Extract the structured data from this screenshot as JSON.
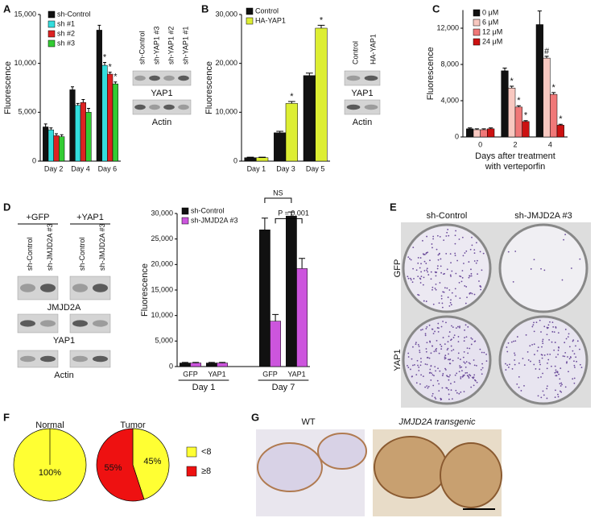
{
  "panels": [
    "A",
    "B",
    "C",
    "D",
    "E",
    "F",
    "G"
  ],
  "chart_data": [
    {
      "type": "bar",
      "ylabel": "Fluorescence",
      "categories": [
        "Day 2",
        "Day 4",
        "Day 6"
      ],
      "ylim": [
        0,
        15000
      ],
      "yticks": [
        0,
        {
          "value": 5000,
          "label": "5,000"
        },
        {
          "value": 10000,
          "label": "10,000"
        },
        {
          "value": 15000,
          "label": "15,000"
        }
      ],
      "series": [
        {
          "name": "sh-Control",
          "color": "#111111",
          "values": [
            3500,
            7300,
            13400
          ],
          "errors": [
            300,
            300,
            500
          ],
          "labels": [
            null,
            null,
            null
          ]
        },
        {
          "name": "sh #1",
          "color": "#33dddd",
          "values": [
            3200,
            5700,
            9800
          ],
          "errors": [
            200,
            200,
            300
          ],
          "labels": [
            null,
            null,
            "*"
          ]
        },
        {
          "name": "sh #2",
          "color": "#dd2222",
          "values": [
            2600,
            6000,
            8900
          ],
          "errors": [
            200,
            300,
            200
          ],
          "labels": [
            null,
            null,
            "*"
          ]
        },
        {
          "name": "sh #3",
          "color": "#33cc33",
          "values": [
            2500,
            5000,
            7900
          ],
          "errors": [
            200,
            400,
            200
          ],
          "labels": [
            null,
            null,
            "*"
          ]
        }
      ]
    },
    {
      "type": "bar",
      "ylabel": "Fluorescence",
      "categories": [
        "Day 1",
        "Day 3",
        "Day 5"
      ],
      "ylim": [
        0,
        30000
      ],
      "yticks": [
        0,
        {
          "value": 10000,
          "label": "10,000"
        },
        {
          "value": 20000,
          "label": "20,000"
        },
        {
          "value": 30000,
          "label": "30,000"
        }
      ],
      "series": [
        {
          "name": "Control",
          "color": "#111111",
          "values": [
            700,
            5800,
            17500
          ],
          "errors": [
            100,
            300,
            500
          ],
          "labels": [
            null,
            null,
            null
          ]
        },
        {
          "name": "HA-YAP1",
          "color": "#ddee33",
          "values": [
            700,
            11800,
            27200
          ],
          "errors": [
            100,
            400,
            600
          ],
          "labels": [
            null,
            "*",
            "*"
          ]
        }
      ]
    },
    {
      "type": "bar",
      "ylabel": "Fluorescence",
      "xlabel": [
        "Days after treatment",
        "with verteporfin"
      ],
      "categories": [
        "0",
        "2",
        "4"
      ],
      "ylim": [
        0,
        14000
      ],
      "yticks": [
        0,
        {
          "value": 4000,
          "label": "4,000"
        },
        {
          "value": 8000,
          "label": "8,000"
        },
        {
          "value": 12000,
          "label": "12,000"
        }
      ],
      "series": [
        {
          "name": "0 μM",
          "color": "#111111",
          "values": [
            900,
            7300,
            12400
          ],
          "errors": [
            100,
            300,
            1500
          ],
          "labels": [
            null,
            null,
            null
          ]
        },
        {
          "name": "6 μM",
          "color": "#f8c8c0",
          "values": [
            800,
            5400,
            8700
          ],
          "errors": [
            100,
            200,
            200
          ],
          "labels": [
            null,
            "*",
            "#"
          ]
        },
        {
          "name": "12 μM",
          "color": "#f07878",
          "values": [
            800,
            3300,
            4700
          ],
          "errors": [
            100,
            150,
            200
          ],
          "labels": [
            null,
            "*",
            "*"
          ]
        },
        {
          "name": "24 μM",
          "color": "#cc1111",
          "values": [
            900,
            1700,
            1300
          ],
          "errors": [
            100,
            100,
            100
          ],
          "labels": [
            null,
            "*",
            "*"
          ]
        }
      ]
    },
    {
      "type": "bar",
      "ylabel": "Fluorescence",
      "categories": [
        "GFP",
        "YAP1",
        "GFP",
        "YAP1"
      ],
      "groups": [
        "Day 1",
        "Day 7"
      ],
      "ylim": [
        0,
        30000
      ],
      "yticks": [
        0,
        {
          "value": 5000,
          "label": "5,000"
        },
        {
          "value": 10000,
          "label": "10,000"
        },
        {
          "value": 15000,
          "label": "15,000"
        },
        {
          "value": 20000,
          "label": "20,000"
        },
        {
          "value": 25000,
          "label": "25,000"
        },
        {
          "value": 30000,
          "label": "30,000"
        }
      ],
      "annotations": [
        "NS",
        "P = 0.001"
      ],
      "series": [
        {
          "name": "sh-Control",
          "color": "#111111",
          "values": [
            700,
            700,
            26800,
            29500
          ],
          "errors": [
            100,
            100,
            2300,
            800
          ],
          "labels": [
            null,
            null,
            null,
            null
          ]
        },
        {
          "name": "sh-JMJD2A #3",
          "color": "#cc55dd",
          "values": [
            700,
            700,
            8900,
            19200
          ],
          "errors": [
            100,
            100,
            1300,
            2000
          ],
          "labels": [
            null,
            null,
            null,
            null
          ]
        }
      ]
    },
    {
      "type": "pie",
      "title": "Normal",
      "values": [
        100
      ],
      "value_labels": [
        "100%"
      ]
    },
    {
      "type": "pie",
      "title": "Tumor",
      "values": [
        45,
        55
      ],
      "value_labels": [
        "45%",
        "55%"
      ]
    }
  ],
  "pie_legend": {
    "labels": [
      "<8",
      "≥8"
    ],
    "colors": [
      "#ffff33",
      "#ee1111"
    ]
  },
  "blots": [
    {
      "lanes": [
        "sh-Control",
        "sh-YAP1 #3",
        "sh-YAP1 #2",
        "sh-YAP1 #1"
      ],
      "bands": [
        "YAP1",
        "Actin"
      ]
    },
    {
      "lanes": [
        "Control",
        "HA-YAP1"
      ],
      "bands": [
        "YAP1",
        "Actin"
      ]
    },
    {
      "groups": [
        "+GFP",
        "+YAP1"
      ],
      "lanes": [
        "sh-Control",
        "sh-JMJD2A #3",
        "sh-Control",
        "sh-JMJD2A #3"
      ],
      "bands": [
        "JMJD2A",
        "YAP1",
        "Actin"
      ]
    }
  ],
  "plates": {
    "columns": [
      "sh-Control",
      "sh-JMJD2A #3"
    ],
    "rows": [
      "GFP",
      "YAP1"
    ]
  },
  "histology": {
    "labels": [
      "WT",
      "JMJD2A transgenic"
    ]
  }
}
